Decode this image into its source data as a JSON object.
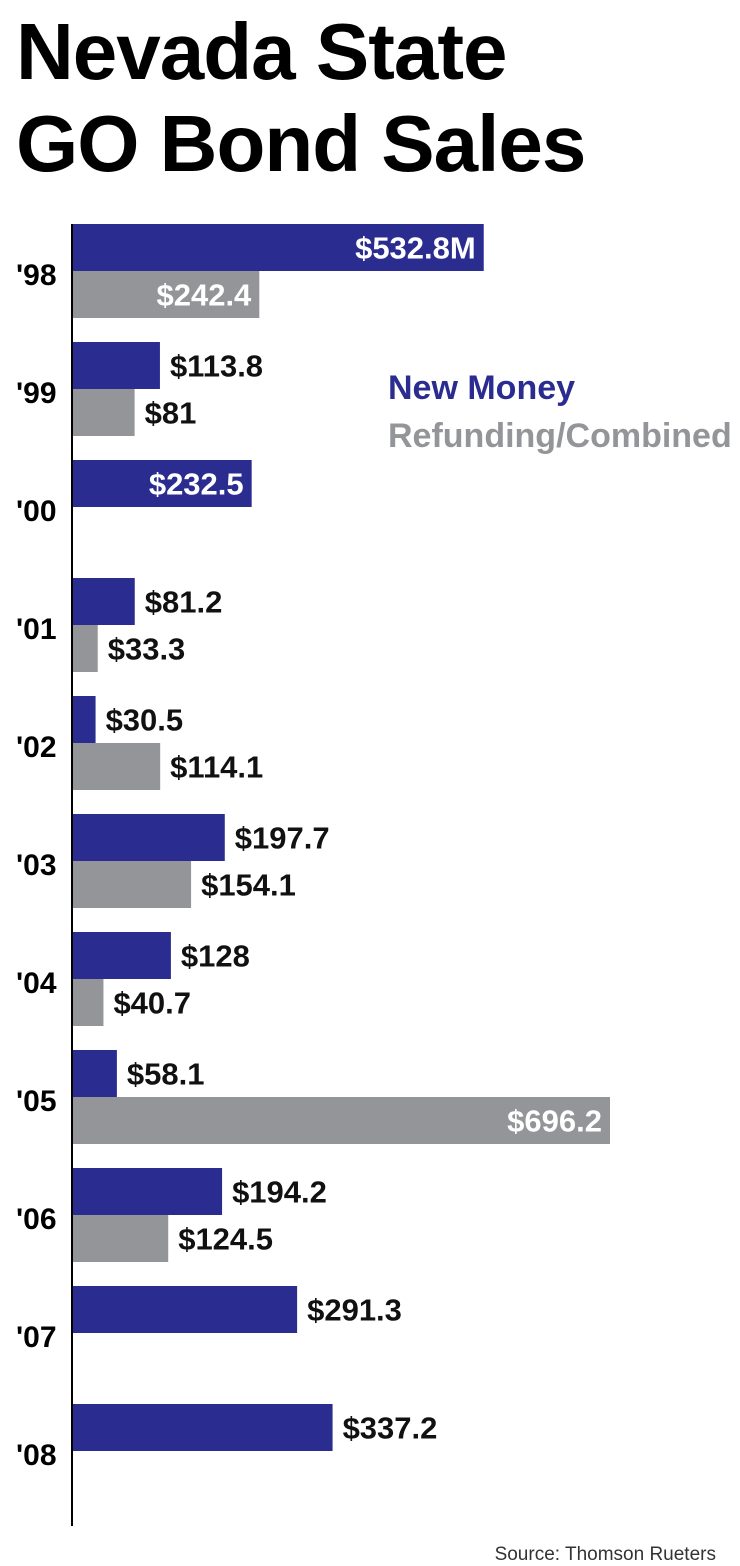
{
  "title_line1": "Nevada State",
  "title_line2": "GO Bond Sales",
  "legend": {
    "new_money": "New Money",
    "refunding": "Refunding/Combined"
  },
  "source": "Source: Thomson Rueters",
  "colors": {
    "new_money": "#2b2c8f",
    "refunding": "#939598"
  },
  "chart_data": {
    "type": "bar",
    "orientation": "horizontal",
    "title": "Nevada State GO Bond Sales",
    "categories": [
      "'98",
      "'99",
      "'00",
      "'01",
      "'02",
      "'03",
      "'04",
      "'05",
      "'06",
      "'07",
      "'08"
    ],
    "series": [
      {
        "name": "New Money",
        "values": [
          532.8,
          113.8,
          232.5,
          81.2,
          30.5,
          197.7,
          128,
          58.1,
          194.2,
          291.3,
          337.2
        ],
        "labels": [
          "$532.8M",
          "$113.8",
          "$232.5",
          "$81.2",
          "$30.5",
          "$197.7",
          "$128",
          "$58.1",
          "$194.2",
          "$291.3",
          "$337.2"
        ]
      },
      {
        "name": "Refunding/Combined",
        "values": [
          242.4,
          81,
          null,
          33.3,
          114.1,
          154.1,
          40.7,
          696.2,
          124.5,
          null,
          null
        ],
        "labels": [
          "$242.4",
          "$81",
          "",
          "$33.3",
          "$114.1",
          "$154.1",
          "$40.7",
          "$696.2",
          "$124.5",
          "",
          ""
        ]
      }
    ],
    "inside_labels": [
      [
        true,
        false,
        true,
        false,
        false,
        false,
        false,
        false,
        false,
        false,
        false
      ],
      [
        true,
        false,
        false,
        false,
        false,
        false,
        false,
        true,
        false,
        false,
        false
      ]
    ],
    "xlim": [
      0,
      696.2
    ],
    "legend_position": "right",
    "grid": false
  }
}
